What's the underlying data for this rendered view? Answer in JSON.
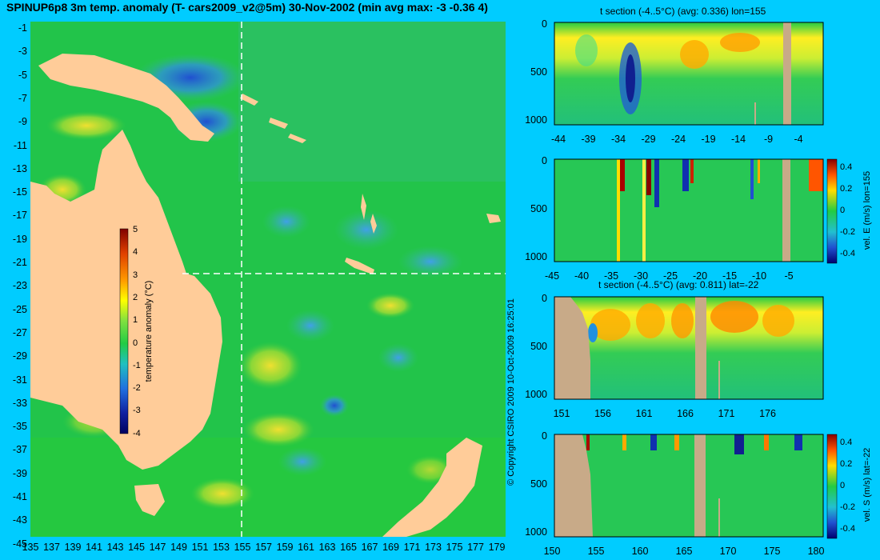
{
  "main_map": {
    "title": "SPINUP6p8 3m temp. anomaly (T- cars2009_v2@5m) 30-Nov-2002 (min avg max: -3 -0.36 4)",
    "y_ticks": [
      "-1",
      "-3",
      "-5",
      "-7",
      "-9",
      "-11",
      "-13",
      "-15",
      "-17",
      "-19",
      "-21",
      "-23",
      "-25",
      "-27",
      "-29",
      "-31",
      "-33",
      "-35",
      "-37",
      "-39",
      "-41",
      "-43",
      "-45"
    ],
    "x_ticks": [
      "135",
      "137",
      "139",
      "141",
      "143",
      "145",
      "147",
      "149",
      "151",
      "153",
      "155",
      "157",
      "159",
      "161",
      "163",
      "165",
      "167",
      "169",
      "171",
      "173",
      "175",
      "177",
      "179"
    ],
    "colorbar": {
      "label": "temperature anomaly (°C)",
      "ticks": [
        "5",
        "4",
        "3",
        "2",
        "1",
        "0",
        "-1",
        "-2",
        "-3",
        "-4"
      ]
    },
    "section_lines": {
      "lon": 155,
      "lat": -22
    }
  },
  "copyright": "© Copyright CSIRO 2009   10-Oct-2009 16:25:01",
  "panels": {
    "p1": {
      "title": "t section (-4..5°C) (avg: 0.336) lon=155",
      "y_ticks": [
        "0",
        "500",
        "1000"
      ],
      "x_ticks": [
        "-44",
        "-39",
        "-34",
        "-29",
        "-24",
        "-19",
        "-14",
        "-9",
        "-4"
      ]
    },
    "p2": {
      "colorbar_label": "vel. E (m/s) lon=155",
      "cbar_ticks": [
        "0.4",
        "0.2",
        "0",
        "-0.2",
        "-0.4"
      ],
      "y_ticks": [
        "0",
        "500",
        "1000"
      ],
      "x_ticks": [
        "-45",
        "-40",
        "-35",
        "-30",
        "-25",
        "-20",
        "-15",
        "-10",
        "-5"
      ]
    },
    "p3": {
      "title": "t section (-4..5°C) (avg: 0.811) lat=-22",
      "y_ticks": [
        "0",
        "500",
        "1000"
      ],
      "x_ticks": [
        "151",
        "156",
        "161",
        "166",
        "171",
        "176"
      ]
    },
    "p4": {
      "colorbar_label": "vel. S (m/s) lat=-22",
      "cbar_ticks": [
        "0.4",
        "0.2",
        "0",
        "-0.2",
        "-0.4"
      ],
      "y_ticks": [
        "0",
        "500",
        "1000"
      ],
      "x_ticks": [
        "150",
        "155",
        "160",
        "165",
        "170",
        "175",
        "180"
      ]
    }
  },
  "colors": {
    "background": "#00ccff",
    "land": "#ffcc99",
    "section_land": "#c8aa88",
    "ocean_base": "#22cc44"
  }
}
